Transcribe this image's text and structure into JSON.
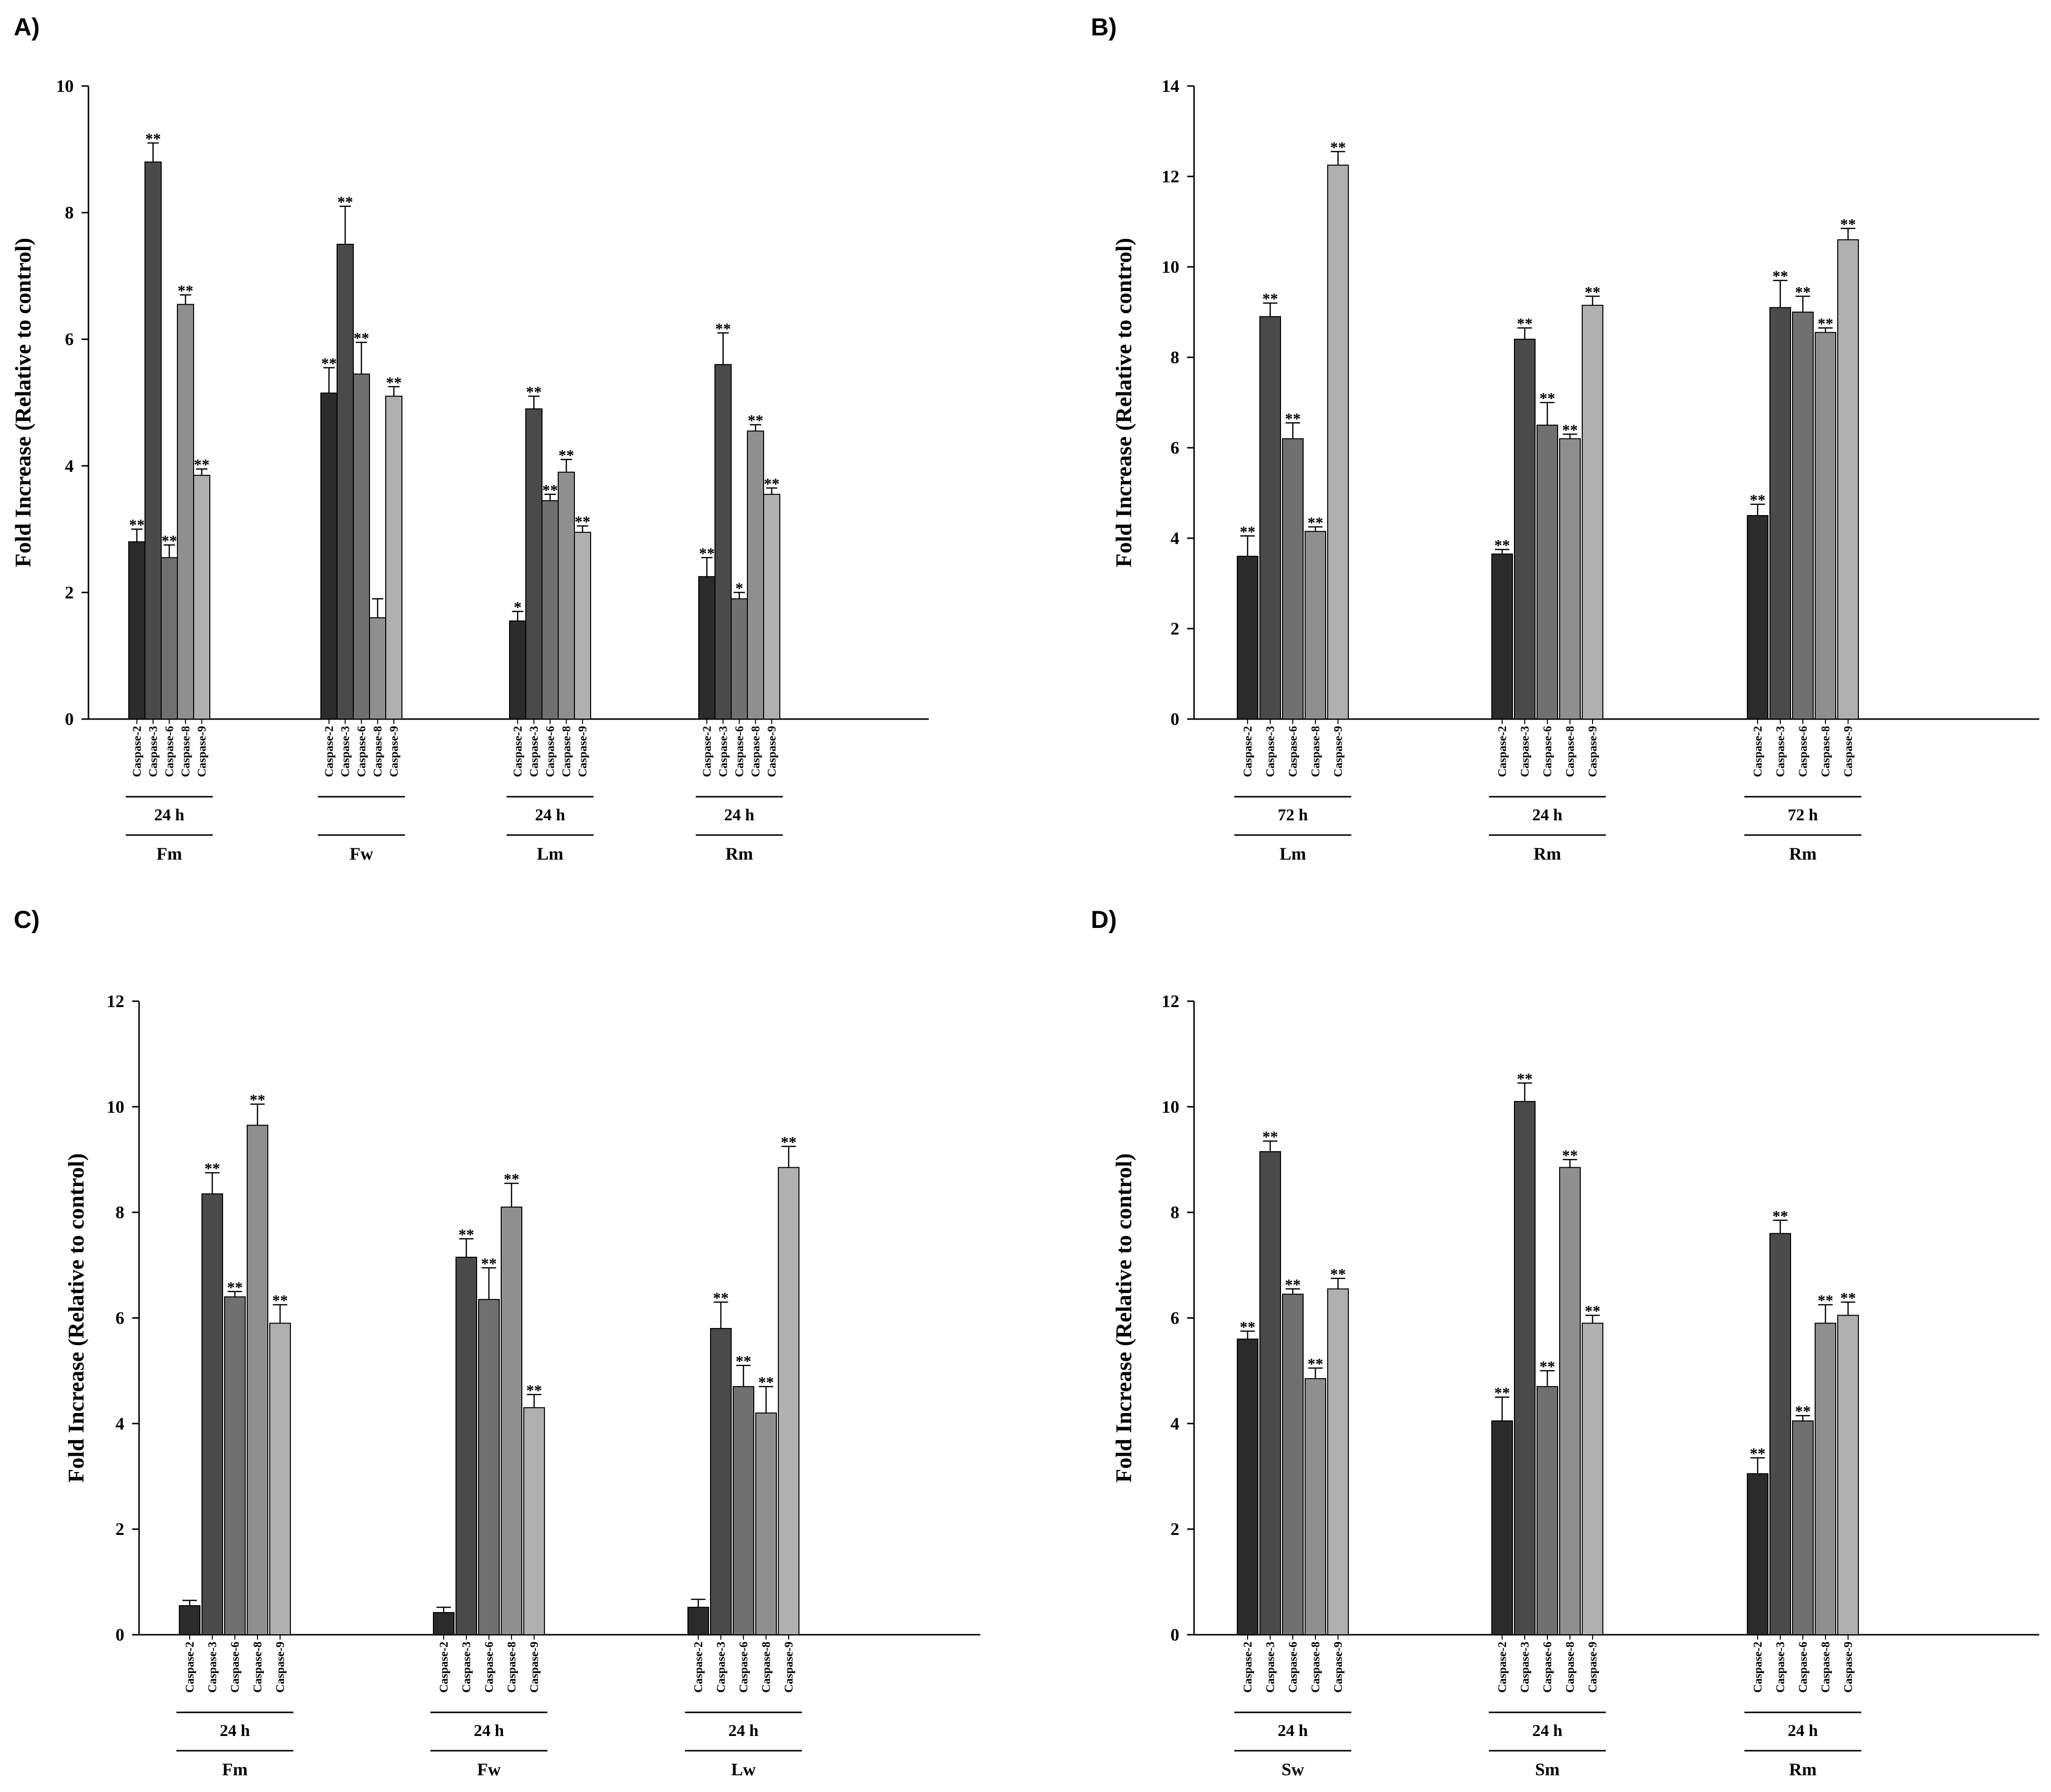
{
  "series_colors": [
    "#2b2b2b",
    "#4a4a4a",
    "#707070",
    "#8f8f8f",
    "#b0b0b0"
  ],
  "chart_data": [
    {
      "type": "bar",
      "panel": "A)",
      "ylabel": "Fold Increase (Relative to control)",
      "ylim": [
        0,
        10
      ],
      "yticks": [
        0,
        2,
        4,
        6,
        8,
        10
      ],
      "categories": [
        "Caspase-2",
        "Caspase-3",
        "Caspase-6",
        "Caspase-8",
        "Caspase-9"
      ],
      "groups": [
        {
          "time": "24 h",
          "label": "Fm",
          "values": [
            2.8,
            8.8,
            2.55,
            6.55,
            3.85
          ],
          "errors": [
            0.2,
            0.3,
            0.2,
            0.15,
            0.1
          ],
          "sig": [
            "**",
            "**",
            "**",
            "**",
            "**"
          ]
        },
        {
          "time": "",
          "label": "Fw",
          "values": [
            5.15,
            7.5,
            5.45,
            1.6,
            5.1
          ],
          "errors": [
            0.4,
            0.6,
            0.5,
            0.3,
            0.15
          ],
          "sig": [
            "**",
            "**",
            "**",
            "",
            "**"
          ]
        },
        {
          "time": "24 h",
          "label": "Lm",
          "values": [
            1.55,
            4.9,
            3.45,
            3.9,
            2.95
          ],
          "errors": [
            0.15,
            0.2,
            0.1,
            0.2,
            0.1
          ],
          "sig": [
            "*",
            "**",
            "**",
            "**",
            "**"
          ]
        },
        {
          "time": "24 h",
          "label": "Rm",
          "values": [
            2.25,
            5.6,
            1.9,
            4.55,
            3.55
          ],
          "errors": [
            0.3,
            0.5,
            0.1,
            0.1,
            0.1
          ],
          "sig": [
            "**",
            "**",
            "*",
            "**",
            "**"
          ]
        }
      ]
    },
    {
      "type": "bar",
      "panel": "B)",
      "ylabel": "Fold Increase (Relative to control)",
      "ylim": [
        0,
        14
      ],
      "yticks": [
        0,
        2,
        4,
        6,
        8,
        10,
        12,
        14
      ],
      "categories": [
        "Caspase-2",
        "Caspase-3",
        "Caspase-6",
        "Caspase-8",
        "Caspase-9"
      ],
      "groups": [
        {
          "time": "72 h",
          "label": "Lm",
          "values": [
            3.6,
            8.9,
            6.2,
            4.15,
            12.25
          ],
          "errors": [
            0.45,
            0.3,
            0.35,
            0.1,
            0.3
          ],
          "sig": [
            "**",
            "**",
            "**",
            "**",
            "**"
          ]
        },
        {
          "time": "24 h",
          "label": "Rm",
          "values": [
            3.65,
            8.4,
            6.5,
            6.2,
            9.15
          ],
          "errors": [
            0.1,
            0.25,
            0.5,
            0.1,
            0.2
          ],
          "sig": [
            "**",
            "**",
            "**",
            "**",
            "**"
          ]
        },
        {
          "time": "72 h",
          "label": "Rm",
          "values": [
            4.5,
            9.1,
            9.0,
            8.55,
            10.6
          ],
          "errors": [
            0.25,
            0.6,
            0.35,
            0.1,
            0.25
          ],
          "sig": [
            "**",
            "**",
            "**",
            "**",
            "**"
          ]
        }
      ]
    },
    {
      "type": "bar",
      "panel": "C)",
      "ylabel": "Fold Increase (Relative to control)",
      "ylim": [
        0,
        12
      ],
      "yticks": [
        0,
        2,
        4,
        6,
        8,
        10,
        12
      ],
      "categories": [
        "Caspase-2",
        "Caspase-3",
        "Caspase-6",
        "Caspase-8",
        "Caspase-9"
      ],
      "groups": [
        {
          "time": "24 h",
          "label": "Fm",
          "values": [
            0.55,
            8.35,
            6.4,
            9.65,
            5.9
          ],
          "errors": [
            0.1,
            0.4,
            0.1,
            0.4,
            0.35
          ],
          "sig": [
            "",
            "**",
            "**",
            "**",
            "**"
          ]
        },
        {
          "time": "24 h",
          "label": "Fw",
          "values": [
            0.42,
            7.15,
            6.35,
            8.1,
            4.3
          ],
          "errors": [
            0.1,
            0.35,
            0.6,
            0.45,
            0.25
          ],
          "sig": [
            "",
            "**",
            "**",
            "**",
            "**"
          ]
        },
        {
          "time": "24 h",
          "label": "Lw",
          "values": [
            0.52,
            5.8,
            4.7,
            4.2,
            8.85
          ],
          "errors": [
            0.15,
            0.5,
            0.4,
            0.5,
            0.4
          ],
          "sig": [
            "",
            "**",
            "**",
            "**",
            "**"
          ]
        }
      ]
    },
    {
      "type": "bar",
      "panel": "D)",
      "ylabel": "Fold Increase (Relative to control)",
      "ylim": [
        0,
        12
      ],
      "yticks": [
        0,
        2,
        4,
        6,
        8,
        10,
        12
      ],
      "categories": [
        "Caspase-2",
        "Caspase-3",
        "Caspase-6",
        "Caspase-8",
        "Caspase-9"
      ],
      "groups": [
        {
          "time": "24 h",
          "label": "Sw",
          "values": [
            5.6,
            9.15,
            6.45,
            4.85,
            6.55
          ],
          "errors": [
            0.15,
            0.2,
            0.1,
            0.2,
            0.2
          ],
          "sig": [
            "**",
            "**",
            "**",
            "**",
            "**"
          ]
        },
        {
          "time": "24 h",
          "label": "Sm",
          "values": [
            4.05,
            10.1,
            4.7,
            8.85,
            5.9
          ],
          "errors": [
            0.45,
            0.35,
            0.3,
            0.15,
            0.15
          ],
          "sig": [
            "**",
            "**",
            "**",
            "**",
            "**"
          ]
        },
        {
          "time": "24 h",
          "label": "Rm",
          "values": [
            3.05,
            7.6,
            4.05,
            5.9,
            6.05
          ],
          "errors": [
            0.3,
            0.25,
            0.1,
            0.35,
            0.25
          ],
          "sig": [
            "**",
            "**",
            "**",
            "**",
            "**"
          ]
        }
      ]
    }
  ]
}
